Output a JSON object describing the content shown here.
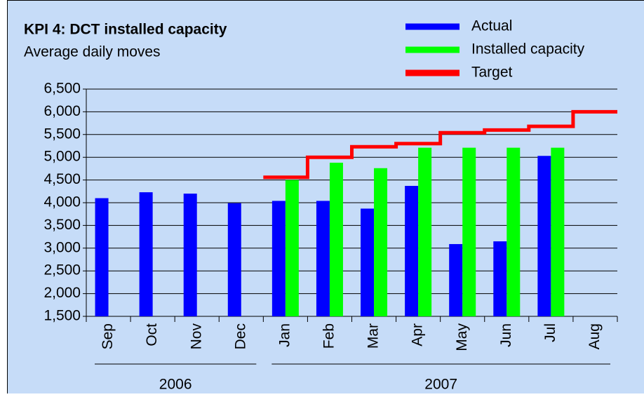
{
  "chart_data": {
    "type": "bar",
    "title": "KPI 4: DCT installed capacity",
    "subtitle": "Average daily moves",
    "categories": [
      "Sep",
      "Oct",
      "Nov",
      "Dec",
      "Jan",
      "Feb",
      "Mar",
      "Apr",
      "May",
      "Jun",
      "Jul",
      "Aug"
    ],
    "x_groups": [
      {
        "label": "2006",
        "span": 4
      },
      {
        "label": "2007",
        "span": 8
      }
    ],
    "series": [
      {
        "name": "Actual",
        "color": "#0000ff",
        "values": [
          4100,
          4230,
          4200,
          3990,
          4040,
          4040,
          3870,
          4370,
          3090,
          3150,
          5030,
          null
        ]
      },
      {
        "name": "Installed capacity",
        "color": "#00ff00",
        "values": [
          null,
          null,
          null,
          null,
          4500,
          4880,
          4760,
          5210,
          5210,
          5210,
          5210,
          null
        ]
      },
      {
        "name": "Target",
        "color": "#ff0000",
        "type": "step",
        "values": [
          null,
          null,
          null,
          null,
          4560,
          5000,
          5230,
          5300,
          5540,
          5600,
          5680,
          6000
        ]
      }
    ],
    "ylim": [
      1500,
      6500
    ],
    "yticks": [
      {
        "value": 1500,
        "label": "1,500"
      },
      {
        "value": 2000,
        "label": "2,000"
      },
      {
        "value": 2500,
        "label": "2,500"
      },
      {
        "value": 3000,
        "label": "3,000"
      },
      {
        "value": 3500,
        "label": "3,500"
      },
      {
        "value": 4000,
        "label": "4,000"
      },
      {
        "value": 4500,
        "label": "4,500"
      },
      {
        "value": 5000,
        "label": "5,000"
      },
      {
        "value": 5500,
        "label": "5,500"
      },
      {
        "value": 6000,
        "label": "6,000"
      },
      {
        "value": 6500,
        "label": "6,500"
      }
    ],
    "grid": true,
    "legend": "top-right",
    "background": "#c6dcf8"
  }
}
